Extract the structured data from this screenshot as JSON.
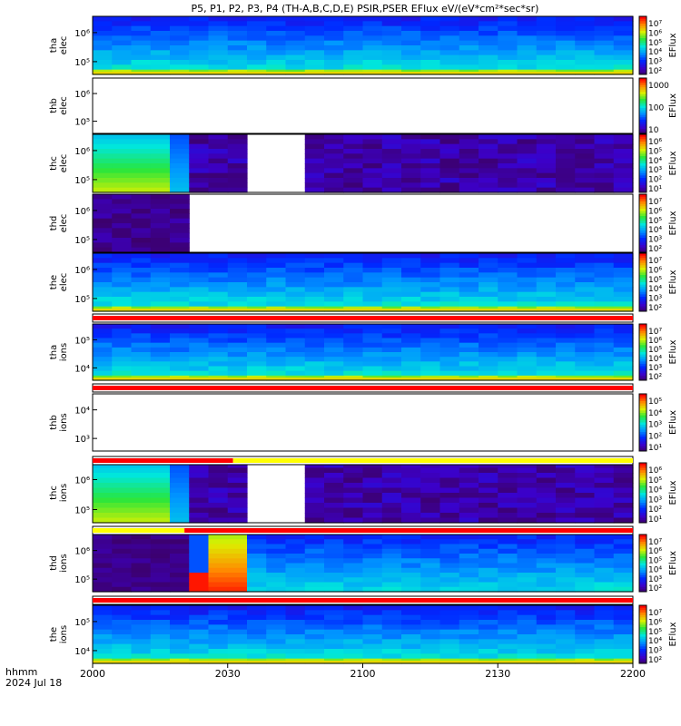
{
  "title": "P5, P1, P2, P3, P4 (TH-A,B,C,D,E) PSIR,PSER EFlux eV/(eV*cm²*sec*sr)",
  "time_axis": {
    "label_line1": "hhmm",
    "label_line2": "2024 Jul 18",
    "ticks": [
      "2000",
      "2030",
      "2100",
      "2130",
      "2200"
    ]
  },
  "colorbar_label": "EFlux",
  "chart_data": [
    {
      "type": "heatmap",
      "panel": "tha elec",
      "ylabel_1": "tha",
      "ylabel_2": "elec",
      "y_ticks": [
        "10⁵",
        "10⁶"
      ],
      "cbar_ticks": [
        "10²",
        "10³",
        "10⁴",
        "10⁵",
        "10⁶",
        "10⁷"
      ],
      "pattern": "smooth",
      "data_coverage": [
        [
          0,
          1
        ]
      ]
    },
    {
      "type": "heatmap",
      "panel": "thb elec",
      "ylabel_1": "thb",
      "ylabel_2": "elec",
      "y_ticks": [
        "10⁵",
        "10⁶"
      ],
      "cbar_ticks": [
        "10",
        "100",
        "1000"
      ],
      "pattern": "empty",
      "data_coverage": []
    },
    {
      "type": "heatmap",
      "panel": "thc elec",
      "ylabel_1": "thc",
      "ylabel_2": "elec",
      "y_ticks": [
        "10⁵",
        "10⁶"
      ],
      "cbar_ticks": [
        "10¹",
        "10²",
        "10³",
        "10⁴",
        "10⁵",
        "10⁶"
      ],
      "pattern": "mixed",
      "data_coverage": [
        [
          0,
          0.3
        ],
        [
          0.38,
          1
        ]
      ]
    },
    {
      "type": "heatmap",
      "panel": "thd elec",
      "ylabel_1": "thd",
      "ylabel_2": "elec",
      "y_ticks": [
        "10⁵",
        "10⁶"
      ],
      "cbar_ticks": [
        "10²",
        "10³",
        "10⁴",
        "10⁵",
        "10⁶",
        "10⁷"
      ],
      "pattern": "sparse",
      "data_coverage": [
        [
          0,
          0.17
        ]
      ]
    },
    {
      "type": "heatmap",
      "panel": "the elec",
      "ylabel_1": "the",
      "ylabel_2": "elec",
      "y_ticks": [
        "10⁵",
        "10⁶"
      ],
      "cbar_ticks": [
        "10²",
        "10³",
        "10⁴",
        "10⁵",
        "10⁶",
        "10⁷"
      ],
      "pattern": "smooth",
      "data_coverage": [
        [
          0,
          1
        ]
      ]
    },
    {
      "type": "heatmap",
      "panel": "tha ions",
      "ylabel_1": "tha",
      "ylabel_2": "ions",
      "y_ticks": [
        "10⁴",
        "10⁵"
      ],
      "cbar_ticks": [
        "10²",
        "10³",
        "10⁴",
        "10⁵",
        "10⁶",
        "10⁷"
      ],
      "pattern": "smooth",
      "data_coverage": [
        [
          0,
          1
        ]
      ]
    },
    {
      "type": "heatmap",
      "panel": "thb ions",
      "ylabel_1": "thb",
      "ylabel_2": "ions",
      "y_ticks": [
        "10³",
        "10⁴"
      ],
      "cbar_ticks": [
        "10¹",
        "10²",
        "10³",
        "10⁴",
        "10⁵"
      ],
      "pattern": "empty",
      "data_coverage": []
    },
    {
      "type": "heatmap",
      "panel": "thc ions",
      "ylabel_1": "thc",
      "ylabel_2": "ions",
      "y_ticks": [
        "10⁵",
        "10⁶"
      ],
      "cbar_ticks": [
        "10¹",
        "10²",
        "10³",
        "10⁴",
        "10⁵",
        "10⁶"
      ],
      "pattern": "mixed",
      "data_coverage": [
        [
          0,
          0.3
        ],
        [
          0.38,
          1
        ]
      ]
    },
    {
      "type": "heatmap",
      "panel": "thd ions",
      "ylabel_1": "thd",
      "ylabel_2": "ions",
      "y_ticks": [
        "10⁵",
        "10⁶"
      ],
      "cbar_ticks": [
        "10²",
        "10³",
        "10⁴",
        "10⁵",
        "10⁶",
        "10⁷"
      ],
      "pattern": "thd",
      "data_coverage": [
        [
          0,
          1
        ]
      ]
    },
    {
      "type": "heatmap",
      "panel": "the ions",
      "ylabel_1": "the",
      "ylabel_2": "ions",
      "y_ticks": [
        "10⁴",
        "10⁵"
      ],
      "cbar_ticks": [
        "10²",
        "10³",
        "10⁴",
        "10⁵",
        "10⁶",
        "10⁷"
      ],
      "pattern": "smooth",
      "data_coverage": [
        [
          0,
          1
        ]
      ]
    }
  ],
  "flag_bars": [
    {
      "after_panel": "the elec",
      "segments": [
        {
          "from": 0,
          "to": 1,
          "color": "#ff0000"
        }
      ]
    },
    {
      "after_panel": "tha ions",
      "segments": [
        {
          "from": 0,
          "to": 1,
          "color": "#ff0000"
        }
      ]
    },
    {
      "after_panel": "thb ions",
      "segments": [
        {
          "from": 0,
          "to": 0.26,
          "color": "#ff0000"
        },
        {
          "from": 0.26,
          "to": 1,
          "color": "#ffff00"
        }
      ]
    },
    {
      "after_panel": "thc ions",
      "segments": [
        {
          "from": 0,
          "to": 0.17,
          "color": "#ffff00"
        },
        {
          "from": 0.17,
          "to": 1,
          "color": "#ff0000"
        }
      ]
    },
    {
      "after_panel": "thd ions",
      "segments": [
        {
          "from": 0,
          "to": 1,
          "color": "#ff0000"
        }
      ]
    }
  ]
}
